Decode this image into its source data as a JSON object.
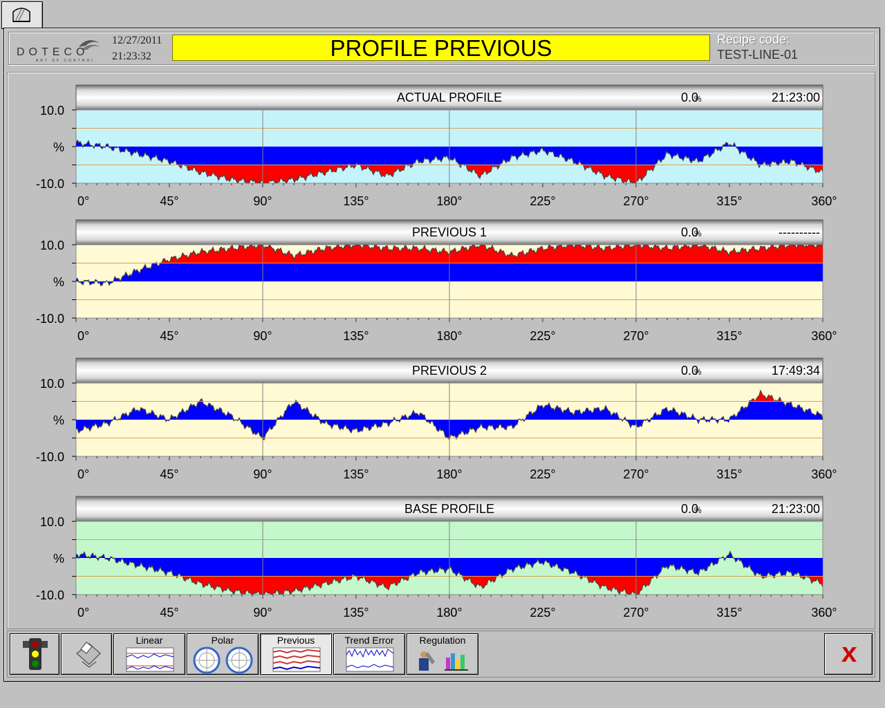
{
  "header": {
    "logo_text": "DOTECO",
    "logo_tagline": "ART OF CONTROL",
    "date": "12/27/2011",
    "time": "21:23:32",
    "title": "PROFILE PREVIOUS",
    "recipe_label": "Recipe code:",
    "recipe_code": "TEST-LINE-01"
  },
  "colors": {
    "positive_fill": "#0000ff",
    "excess_fill": "#ff0000",
    "bg_actual": "#c4f4fa",
    "bg_previous": "#fffad4",
    "bg_base": "#c4f8cc"
  },
  "axis": {
    "y_max_label": "10.0",
    "y_mid_label": "%",
    "y_min_label": "-10.0",
    "x_ticks": [
      "0°",
      "45°",
      "90°",
      "135°",
      "180°",
      "225°",
      "270°",
      "315°",
      "360°"
    ]
  },
  "chart_data": [
    {
      "type": "area",
      "title": "ACTUAL PROFILE",
      "value": "0.0",
      "unit": "%",
      "timestamp": "21:23:00",
      "background_color": "#c4f4fa",
      "xlim": [
        0,
        360
      ],
      "ylim": [
        -10,
        10
      ],
      "x": [
        0,
        15,
        30,
        45,
        60,
        75,
        90,
        105,
        120,
        135,
        150,
        165,
        180,
        195,
        210,
        225,
        240,
        255,
        270,
        285,
        300,
        315,
        330,
        345,
        360
      ],
      "y": [
        1,
        0,
        -2,
        -4,
        -7,
        -9,
        -10,
        -9,
        -7,
        -5,
        -8,
        -4,
        -3,
        -8,
        -3,
        -1,
        -4,
        -8,
        -10,
        -2,
        -4,
        1,
        -5,
        -4,
        -7
      ]
    },
    {
      "type": "area",
      "title": "PREVIOUS 1",
      "value": "0.0",
      "unit": "%",
      "timestamp": "----------",
      "background_color": "#fffad4",
      "xlim": [
        0,
        360
      ],
      "ylim": [
        -10,
        10
      ],
      "x": [
        0,
        15,
        30,
        45,
        60,
        75,
        90,
        105,
        120,
        135,
        150,
        165,
        180,
        195,
        210,
        225,
        240,
        255,
        270,
        285,
        300,
        315,
        330,
        345,
        360
      ],
      "y": [
        0,
        -0.5,
        3,
        6,
        8,
        9,
        10,
        7,
        9,
        10,
        9,
        9,
        8,
        10,
        7,
        9,
        10,
        9,
        10,
        9,
        10,
        8,
        9,
        10,
        10
      ]
    },
    {
      "type": "area",
      "title": "PREVIOUS 2",
      "value": "0.0",
      "unit": "%",
      "timestamp": "17:49:34",
      "background_color": "#fffad4",
      "xlim": [
        0,
        360
      ],
      "ylim": [
        -10,
        10
      ],
      "x": [
        0,
        15,
        30,
        45,
        60,
        75,
        90,
        105,
        120,
        135,
        150,
        165,
        180,
        195,
        210,
        225,
        240,
        255,
        270,
        285,
        300,
        315,
        330,
        345,
        360
      ],
      "y": [
        -3,
        -1,
        3,
        0,
        5,
        1,
        -5,
        5,
        -1,
        -3,
        -1,
        2,
        -5,
        -2,
        -2,
        4,
        2,
        3,
        -2,
        3,
        0,
        0,
        7,
        4,
        1
      ]
    },
    {
      "type": "area",
      "title": "BASE PROFILE",
      "value": "0.0",
      "unit": "%",
      "timestamp": "21:23:00",
      "background_color": "#c4f8cc",
      "xlim": [
        0,
        360
      ],
      "ylim": [
        -10,
        10
      ],
      "x": [
        0,
        15,
        30,
        45,
        60,
        75,
        90,
        105,
        120,
        135,
        150,
        165,
        180,
        195,
        210,
        225,
        240,
        255,
        270,
        285,
        300,
        315,
        330,
        345,
        360
      ],
      "y": [
        1,
        0,
        -2,
        -4,
        -7,
        -9,
        -10,
        -9,
        -7,
        -5,
        -8,
        -4,
        -3,
        -8,
        -3,
        -1,
        -4,
        -8,
        -10,
        -2,
        -4,
        1,
        -5,
        -4,
        -7
      ]
    }
  ],
  "toolbar": {
    "buttons": [
      {
        "name": "status-button",
        "label": "",
        "icon": "traffic-light-icon"
      },
      {
        "name": "print-button",
        "label": "",
        "icon": "printer-icon"
      },
      {
        "name": "linear-button",
        "label": "Linear",
        "icon": "linear-chart-icon"
      },
      {
        "name": "polar-button",
        "label": "Polar",
        "icon": "polar-chart-icon"
      },
      {
        "name": "previous-button",
        "label": "Previous",
        "icon": "previous-chart-icon",
        "active": true
      },
      {
        "name": "trend-error-button",
        "label": "Trend Error",
        "icon": "trend-error-icon"
      },
      {
        "name": "regulation-button",
        "label": "Regulation",
        "icon": "regulation-icon"
      }
    ],
    "close_icon": "close-x-icon"
  }
}
